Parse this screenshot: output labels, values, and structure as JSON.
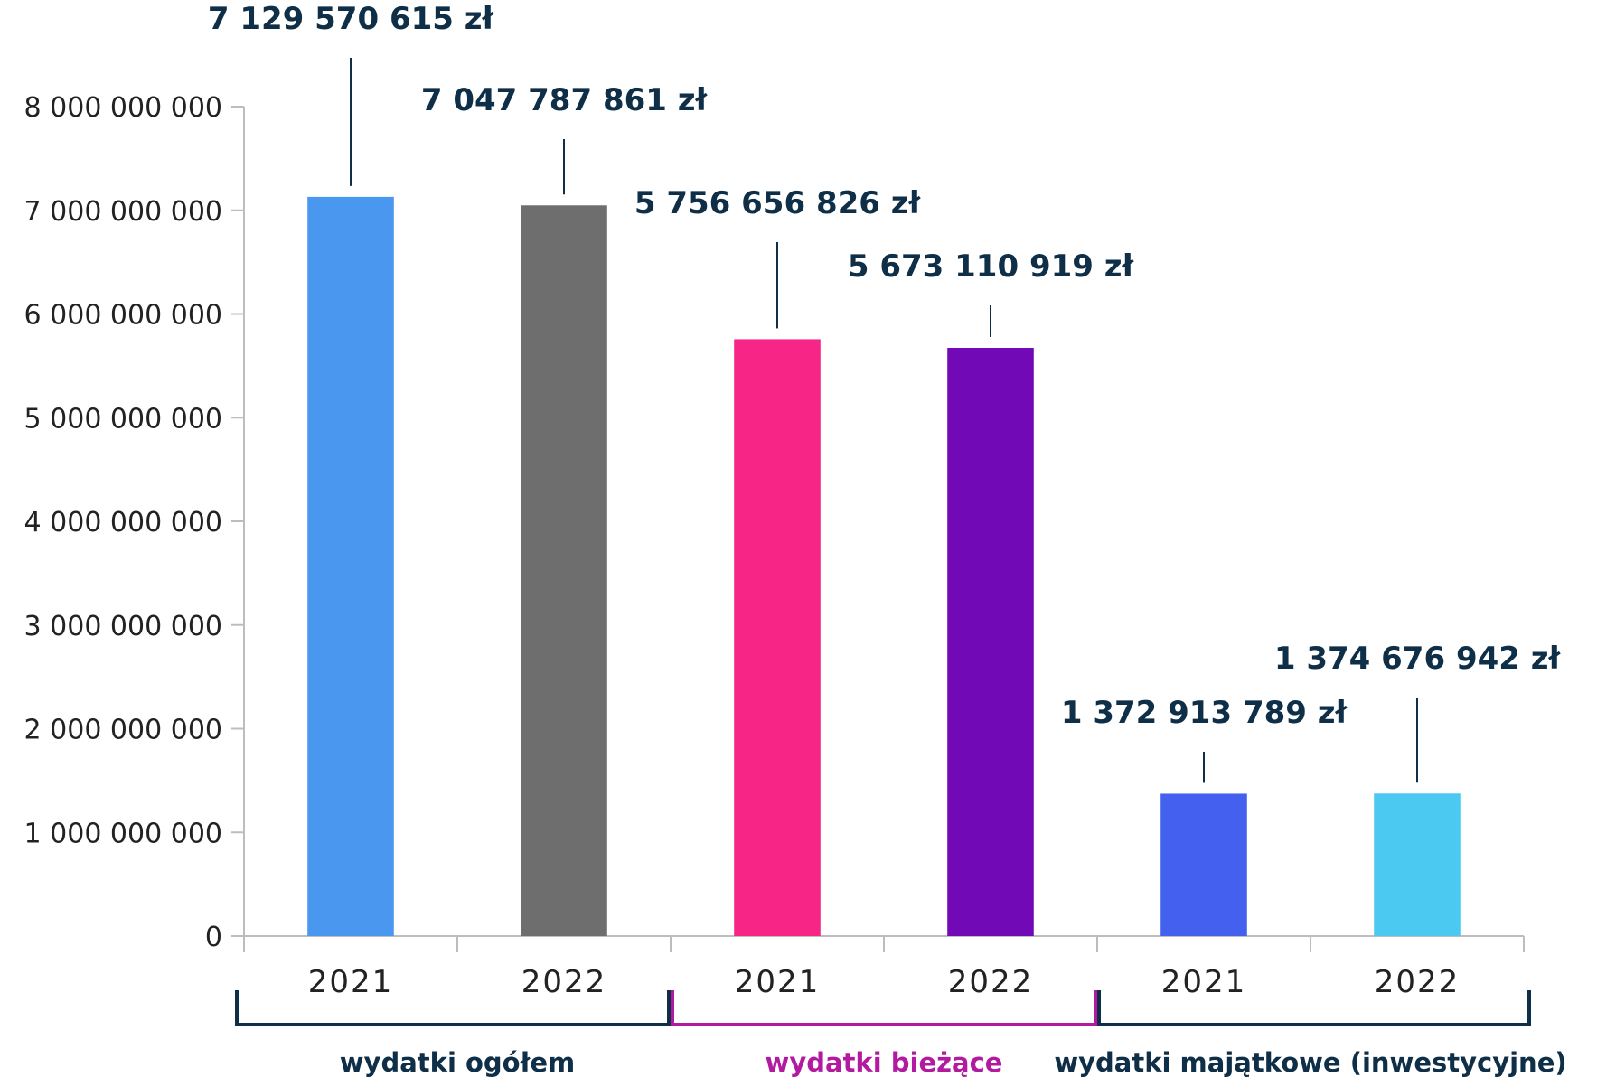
{
  "chart_data": {
    "type": "bar",
    "ylim": [
      0,
      8000000000
    ],
    "yticks": [
      0,
      1000000000,
      2000000000,
      3000000000,
      4000000000,
      5000000000,
      6000000000,
      7000000000,
      8000000000
    ],
    "ytick_labels": [
      "0",
      "1 000 000 000",
      "2 000 000 000",
      "3 000 000 000",
      "4 000 000 000",
      "5 000 000 000",
      "6 000 000 000",
      "7 000 000 000",
      "8 000 000 000"
    ],
    "grid": false,
    "legend": "none",
    "groups": [
      {
        "name": "wydatki ogółem",
        "color": "#0e2f47",
        "bars": [
          {
            "category": "2021",
            "value": 7129570615,
            "label": "7 129 570 615 zł",
            "color": "#4a97f0"
          },
          {
            "category": "2022",
            "value": 7047787861,
            "label": "7 047 787 861 zł",
            "color": "#6e6e6e"
          }
        ]
      },
      {
        "name": "wydatki bieżące",
        "color": "#b21ba0",
        "bars": [
          {
            "category": "2021",
            "value": 5756656826,
            "label": "5 756 656 826 zł",
            "color": "#f72585"
          },
          {
            "category": "2022",
            "value": 5673110919,
            "label": "5 673 110 919  zł",
            "color": "#7209b7"
          }
        ]
      },
      {
        "name": "wydatki majątkowe (inwestycyjne)",
        "color": "#0e2f47",
        "bars": [
          {
            "category": "2021",
            "value": 1372913789,
            "label": "1 372 913 789 zł",
            "color": "#4361ee"
          },
          {
            "category": "2022",
            "value": 1374676942,
            "label": "1 374 676 942 zł",
            "color": "#4cc9f0"
          }
        ]
      }
    ]
  }
}
